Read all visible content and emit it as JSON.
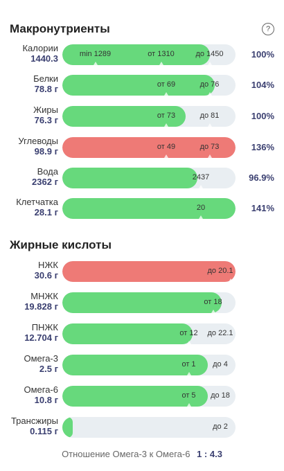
{
  "macros": {
    "title": "Макронутриенты",
    "help": "?",
    "rows": [
      {
        "name": "Калории",
        "amount": "1440.3",
        "percent": "100%",
        "color": "green",
        "fill": 0.85,
        "marks": [
          {
            "pos": 0.19,
            "text": "min 1289"
          },
          {
            "pos": 0.57,
            "text": "от 1310"
          },
          {
            "pos": 0.85,
            "text": "до 1450"
          }
        ]
      },
      {
        "name": "Белки",
        "amount": "78.8 г",
        "percent": "104%",
        "color": "green",
        "fill": 0.88,
        "marks": [
          {
            "pos": 0.6,
            "text": "от 69"
          },
          {
            "pos": 0.85,
            "text": "до 76"
          }
        ]
      },
      {
        "name": "Жиры",
        "amount": "76.3 г",
        "percent": "100%",
        "color": "green",
        "fill": 0.71,
        "marks": [
          {
            "pos": 0.6,
            "text": "от 73"
          },
          {
            "pos": 0.85,
            "text": "до 81"
          }
        ]
      },
      {
        "name": "Углеводы",
        "amount": "98.9 г",
        "percent": "136%",
        "color": "red",
        "fill": 1.0,
        "marks": [
          {
            "pos": 0.6,
            "text": "от 49"
          },
          {
            "pos": 0.85,
            "text": "до 73"
          }
        ]
      },
      {
        "name": "Вода",
        "amount": "2362 г",
        "percent": "96.9%",
        "color": "green",
        "fill": 0.78,
        "marks": [
          {
            "pos": 0.8,
            "text": "2437"
          }
        ]
      },
      {
        "name": "Клетчатка",
        "amount": "28.1 г",
        "percent": "141%",
        "color": "green",
        "fill": 1.0,
        "marks": [
          {
            "pos": 0.8,
            "text": "20"
          }
        ]
      }
    ]
  },
  "fatty_acids": {
    "title": "Жирные кислоты",
    "rows": [
      {
        "name": "НЖК",
        "amount": "30.6 г",
        "color": "red",
        "fill": 1.0,
        "marks": [
          {
            "pos": 0.97,
            "text": "до 20.1"
          }
        ]
      },
      {
        "name": "МНЖК",
        "amount": "19.828 г",
        "color": "green",
        "fill": 0.92,
        "marks": [
          {
            "pos": 0.87,
            "text": "от 18"
          }
        ]
      },
      {
        "name": "ПНЖК",
        "amount": "12.704 г",
        "color": "green",
        "fill": 0.75,
        "marks": [
          {
            "pos": 0.73,
            "text": "от 12"
          },
          {
            "pos": 0.99,
            "text": "до 22.1"
          }
        ]
      },
      {
        "name": "Омега-3",
        "amount": "2.5 г",
        "color": "green",
        "fill": 0.84,
        "marks": [
          {
            "pos": 0.73,
            "text": "от 1"
          },
          {
            "pos": 0.99,
            "text": "до 4"
          }
        ]
      },
      {
        "name": "Омега-6",
        "amount": "10.8 г",
        "color": "green",
        "fill": 0.84,
        "marks": [
          {
            "pos": 0.73,
            "text": "от 5"
          },
          {
            "pos": 0.99,
            "text": "до 18"
          }
        ]
      },
      {
        "name": "Трансжиры",
        "amount": "0.115 г",
        "color": "green",
        "fill": 0.06,
        "marks": [
          {
            "pos": 0.99,
            "text": "до 2"
          }
        ]
      }
    ]
  },
  "ratio": {
    "label": "Отношение Омега-3 к Омега-6",
    "value": "1 : 4.3"
  }
}
